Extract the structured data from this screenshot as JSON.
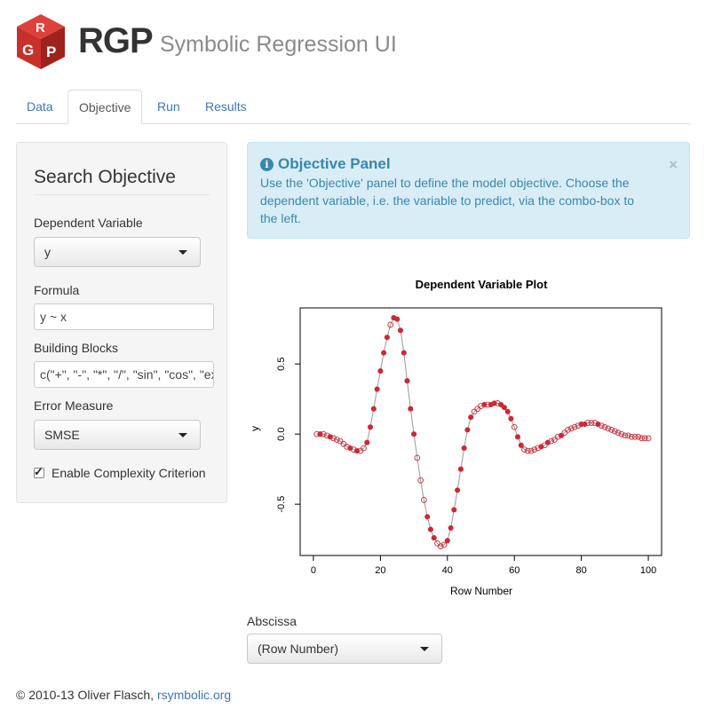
{
  "header": {
    "app_name": "RGP",
    "subtitle": "Symbolic Regression UI",
    "logo_letters": [
      "R",
      "G",
      "P"
    ],
    "brand_color": "#c8302a"
  },
  "tabs": [
    {
      "label": "Data",
      "active": false
    },
    {
      "label": "Objective",
      "active": true
    },
    {
      "label": "Run",
      "active": false
    },
    {
      "label": "Results",
      "active": false
    }
  ],
  "sidebar": {
    "title": "Search Objective",
    "dependent_variable": {
      "label": "Dependent Variable",
      "value": "y"
    },
    "formula": {
      "label": "Formula",
      "value": "y ~ x"
    },
    "building_blocks": {
      "label": "Building Blocks",
      "value": "c(\"+\", \"-\", \"*\", \"/\", \"sin\", \"cos\", \"exp\", \"log\")"
    },
    "error_measure": {
      "label": "Error Measure",
      "value": "SMSE"
    },
    "complexity": {
      "label": "Enable Complexity Criterion",
      "checked": true
    }
  },
  "alert": {
    "icon": "info-circle-icon",
    "title": "Objective Panel",
    "text": "Use the 'Objective' panel to define the model objective. Choose the dependent variable, i.e. the variable to predict, via the combo-box to the left.",
    "close": "×",
    "color": "#3a87ad",
    "background": "#d9edf7"
  },
  "chart_data": {
    "type": "scatter",
    "title": "Dependent Variable Plot",
    "xlabel": "Row Number",
    "ylabel": "y",
    "xlim": [
      0,
      100
    ],
    "ylim": [
      -0.8,
      0.85
    ],
    "xticks": [
      "0",
      "20",
      "40",
      "60",
      "80",
      "100"
    ],
    "yticks": [
      "-0.5",
      "0.0",
      "0.5"
    ],
    "marker_color": "#cc2936",
    "line_color": "#999999",
    "filled_points_are_training": true,
    "x": [
      1,
      2,
      3,
      4,
      5,
      6,
      7,
      8,
      9,
      10,
      11,
      12,
      13,
      14,
      15,
      16,
      17,
      18,
      19,
      20,
      21,
      22,
      23,
      24,
      25,
      26,
      27,
      28,
      29,
      30,
      31,
      32,
      33,
      34,
      35,
      36,
      37,
      38,
      39,
      40,
      41,
      42,
      43,
      44,
      45,
      46,
      47,
      48,
      49,
      50,
      51,
      52,
      53,
      54,
      55,
      56,
      57,
      58,
      59,
      60,
      61,
      62,
      63,
      64,
      65,
      66,
      67,
      68,
      69,
      70,
      71,
      72,
      73,
      74,
      75,
      76,
      77,
      78,
      79,
      80,
      81,
      82,
      83,
      84,
      85,
      86,
      87,
      88,
      89,
      90,
      91,
      92,
      93,
      94,
      95,
      96,
      97,
      98,
      99,
      100
    ],
    "y": [
      0.0,
      0.0,
      0.0,
      -0.01,
      -0.02,
      -0.03,
      -0.04,
      -0.05,
      -0.07,
      -0.09,
      -0.1,
      -0.11,
      -0.12,
      -0.12,
      -0.1,
      -0.06,
      0.05,
      0.18,
      0.32,
      0.45,
      0.58,
      0.69,
      0.78,
      0.83,
      0.82,
      0.74,
      0.58,
      0.38,
      0.18,
      0.0,
      -0.17,
      -0.33,
      -0.47,
      -0.59,
      -0.68,
      -0.74,
      -0.78,
      -0.8,
      -0.79,
      -0.76,
      -0.67,
      -0.54,
      -0.4,
      -0.25,
      -0.1,
      0.03,
      0.12,
      0.16,
      0.18,
      0.2,
      0.21,
      0.21,
      0.21,
      0.22,
      0.22,
      0.21,
      0.19,
      0.16,
      0.11,
      0.05,
      -0.02,
      -0.08,
      -0.11,
      -0.12,
      -0.12,
      -0.11,
      -0.1,
      -0.09,
      -0.08,
      -0.06,
      -0.05,
      -0.04,
      -0.02,
      -0.01,
      0.01,
      0.03,
      0.04,
      0.05,
      0.06,
      0.07,
      0.07,
      0.08,
      0.08,
      0.08,
      0.07,
      0.06,
      0.05,
      0.04,
      0.03,
      0.02,
      0.01,
      0.0,
      -0.01,
      -0.01,
      -0.02,
      -0.02,
      -0.02,
      -0.03,
      -0.03,
      -0.03
    ],
    "filled": [
      false,
      true,
      false,
      false,
      true,
      false,
      false,
      false,
      false,
      false,
      true,
      false,
      true,
      false,
      false,
      true,
      true,
      true,
      true,
      true,
      true,
      true,
      false,
      true,
      true,
      true,
      true,
      true,
      true,
      true,
      false,
      false,
      false,
      true,
      true,
      true,
      false,
      false,
      false,
      true,
      true,
      true,
      true,
      true,
      true,
      true,
      true,
      false,
      false,
      false,
      true,
      false,
      true,
      true,
      false,
      true,
      true,
      true,
      true,
      false,
      true,
      true,
      false,
      false,
      false,
      false,
      false,
      true,
      false,
      true,
      false,
      false,
      false,
      true,
      false,
      false,
      false,
      false,
      false,
      true,
      true,
      false,
      false,
      false,
      true,
      false,
      false,
      false,
      false,
      false,
      false,
      false,
      false,
      false,
      false,
      false,
      false,
      false,
      false,
      false
    ]
  },
  "abscissa": {
    "label": "Abscissa",
    "value": "(Row Number)"
  },
  "footer": {
    "copyright": "© 2010-13 Oliver Flasch,",
    "link": "rsymbolic.org"
  }
}
